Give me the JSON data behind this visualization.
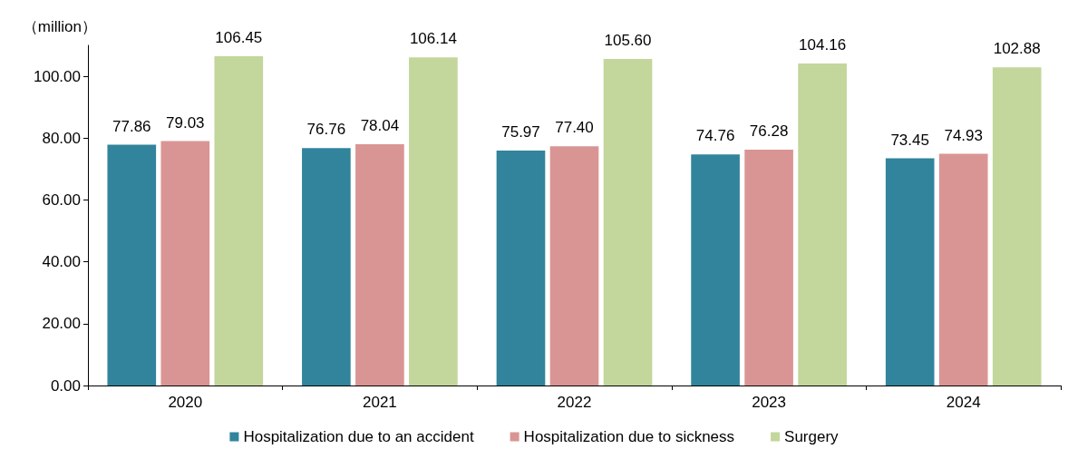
{
  "chart_data": {
    "type": "bar",
    "ylabel": "（million）",
    "categories": [
      "2020",
      "2021",
      "2022",
      "2023",
      "2024"
    ],
    "series": [
      {
        "name": "Hospitalization due to an accident",
        "color": "#31849b",
        "values": [
          77.86,
          76.76,
          75.97,
          74.76,
          73.45
        ],
        "value_labels": [
          "77.86",
          "76.76",
          "75.97",
          "74.76",
          "73.45"
        ]
      },
      {
        "name": "Hospitalization due to sickness",
        "color": "#d99594",
        "values": [
          79.03,
          78.04,
          77.4,
          76.28,
          74.93
        ],
        "value_labels": [
          "79.03",
          "78.04",
          "77.40",
          "76.28",
          "74.93"
        ]
      },
      {
        "name": "Surgery",
        "color": "#c3d69b",
        "values": [
          106.45,
          106.14,
          105.6,
          104.16,
          102.88
        ],
        "value_labels": [
          "106.45",
          "106.14",
          "105.60",
          "104.16",
          "102.88"
        ]
      }
    ],
    "ylim": [
      0,
      110
    ],
    "yticks": [
      {
        "value": 0,
        "label": "0.00"
      },
      {
        "value": 20,
        "label": "20.00"
      },
      {
        "value": 40,
        "label": "40.00"
      },
      {
        "value": 60,
        "label": "60.00"
      },
      {
        "value": 80,
        "label": "80.00"
      },
      {
        "value": 100,
        "label": "100.00"
      }
    ],
    "grid": false,
    "legend": "bottom"
  }
}
